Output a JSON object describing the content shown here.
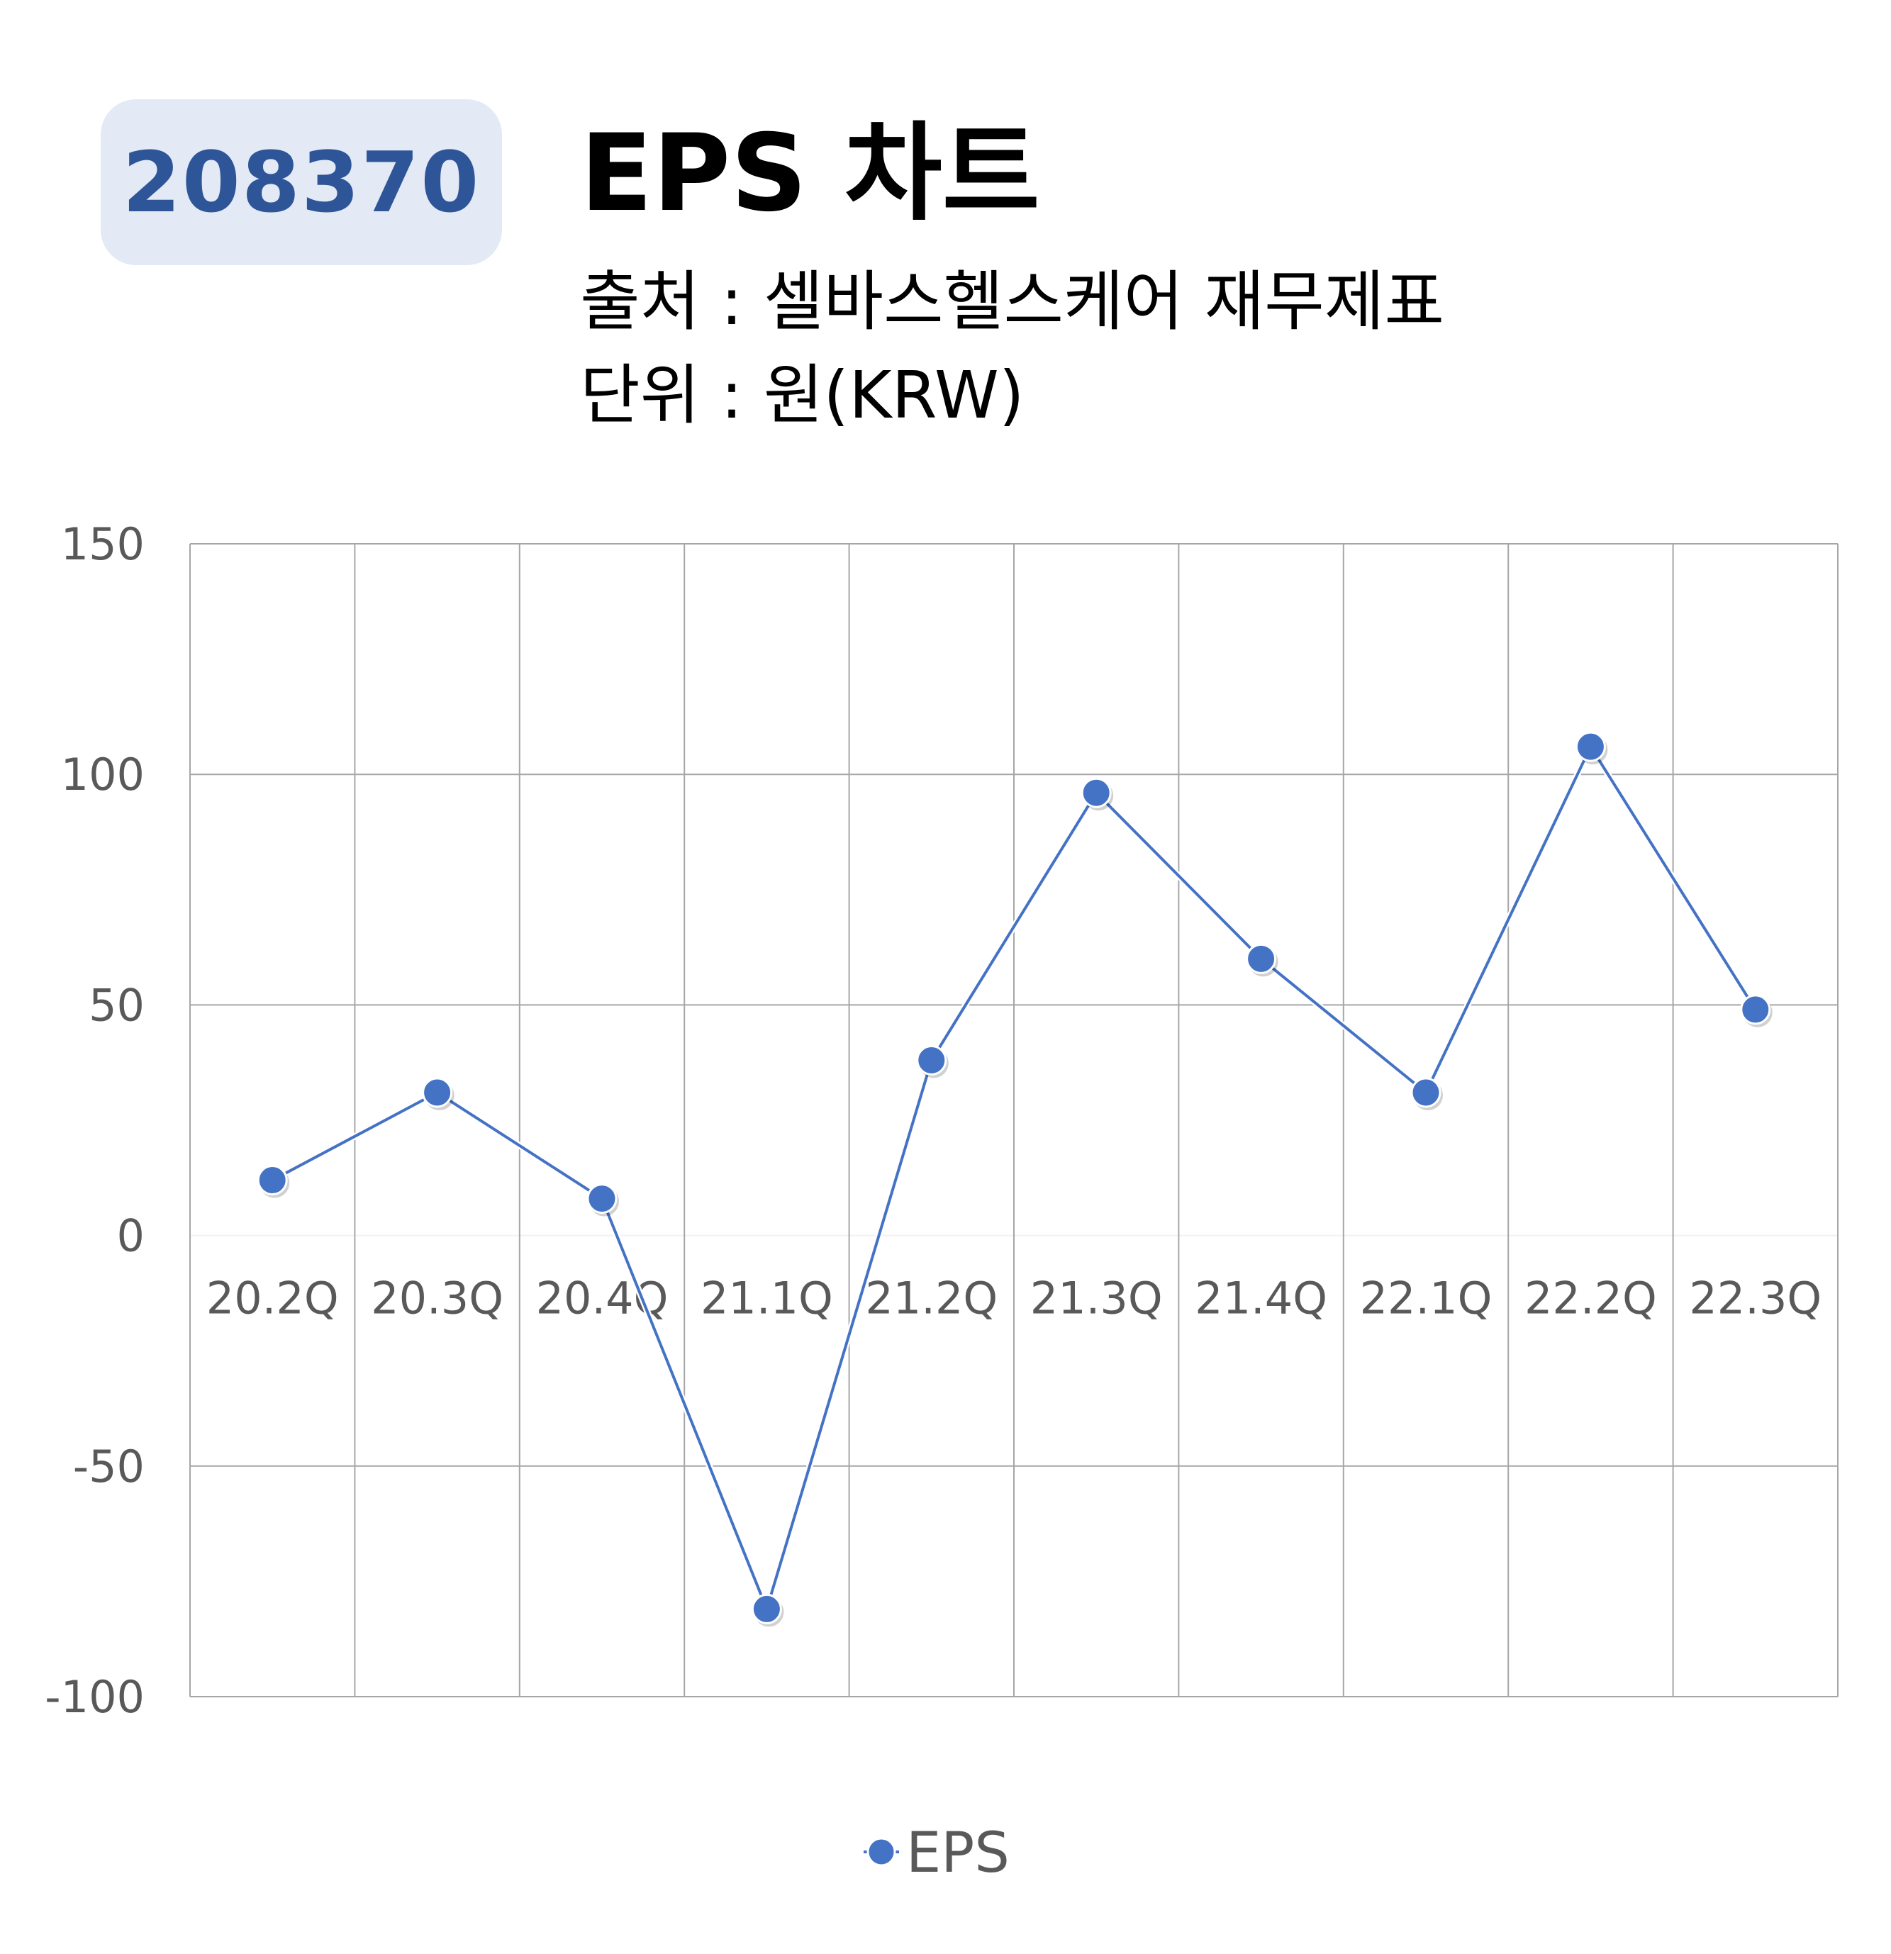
{
  "badge": "208370",
  "title": "EPS 차트",
  "source_line": "출처 : 셀바스헬스케어 재무제표",
  "unit_line": "단위 : 원(KRW)",
  "colors": {
    "badge_bg": "#e3e9f5",
    "badge_text": "#2e5597",
    "series": "#4472c4",
    "grid": "#a6a6a6",
    "tick_text": "#595959"
  },
  "chart_data": {
    "type": "line",
    "categories": [
      "20.2Q",
      "20.3Q",
      "20.4Q",
      "21.1Q",
      "21.2Q",
      "21.3Q",
      "21.4Q",
      "22.1Q",
      "22.2Q",
      "22.3Q"
    ],
    "series": [
      {
        "name": "EPS",
        "values": [
          12,
          31,
          8,
          -81,
          38,
          96,
          60,
          31,
          106,
          49
        ]
      }
    ],
    "ylim": [
      -100,
      150
    ],
    "yticks": [
      150,
      100,
      50,
      0,
      -50,
      -100
    ],
    "ytick_labels": [
      "150",
      "100",
      "50",
      "0",
      "-50",
      "-100"
    ],
    "grid": true,
    "legend": "bottom-center"
  }
}
